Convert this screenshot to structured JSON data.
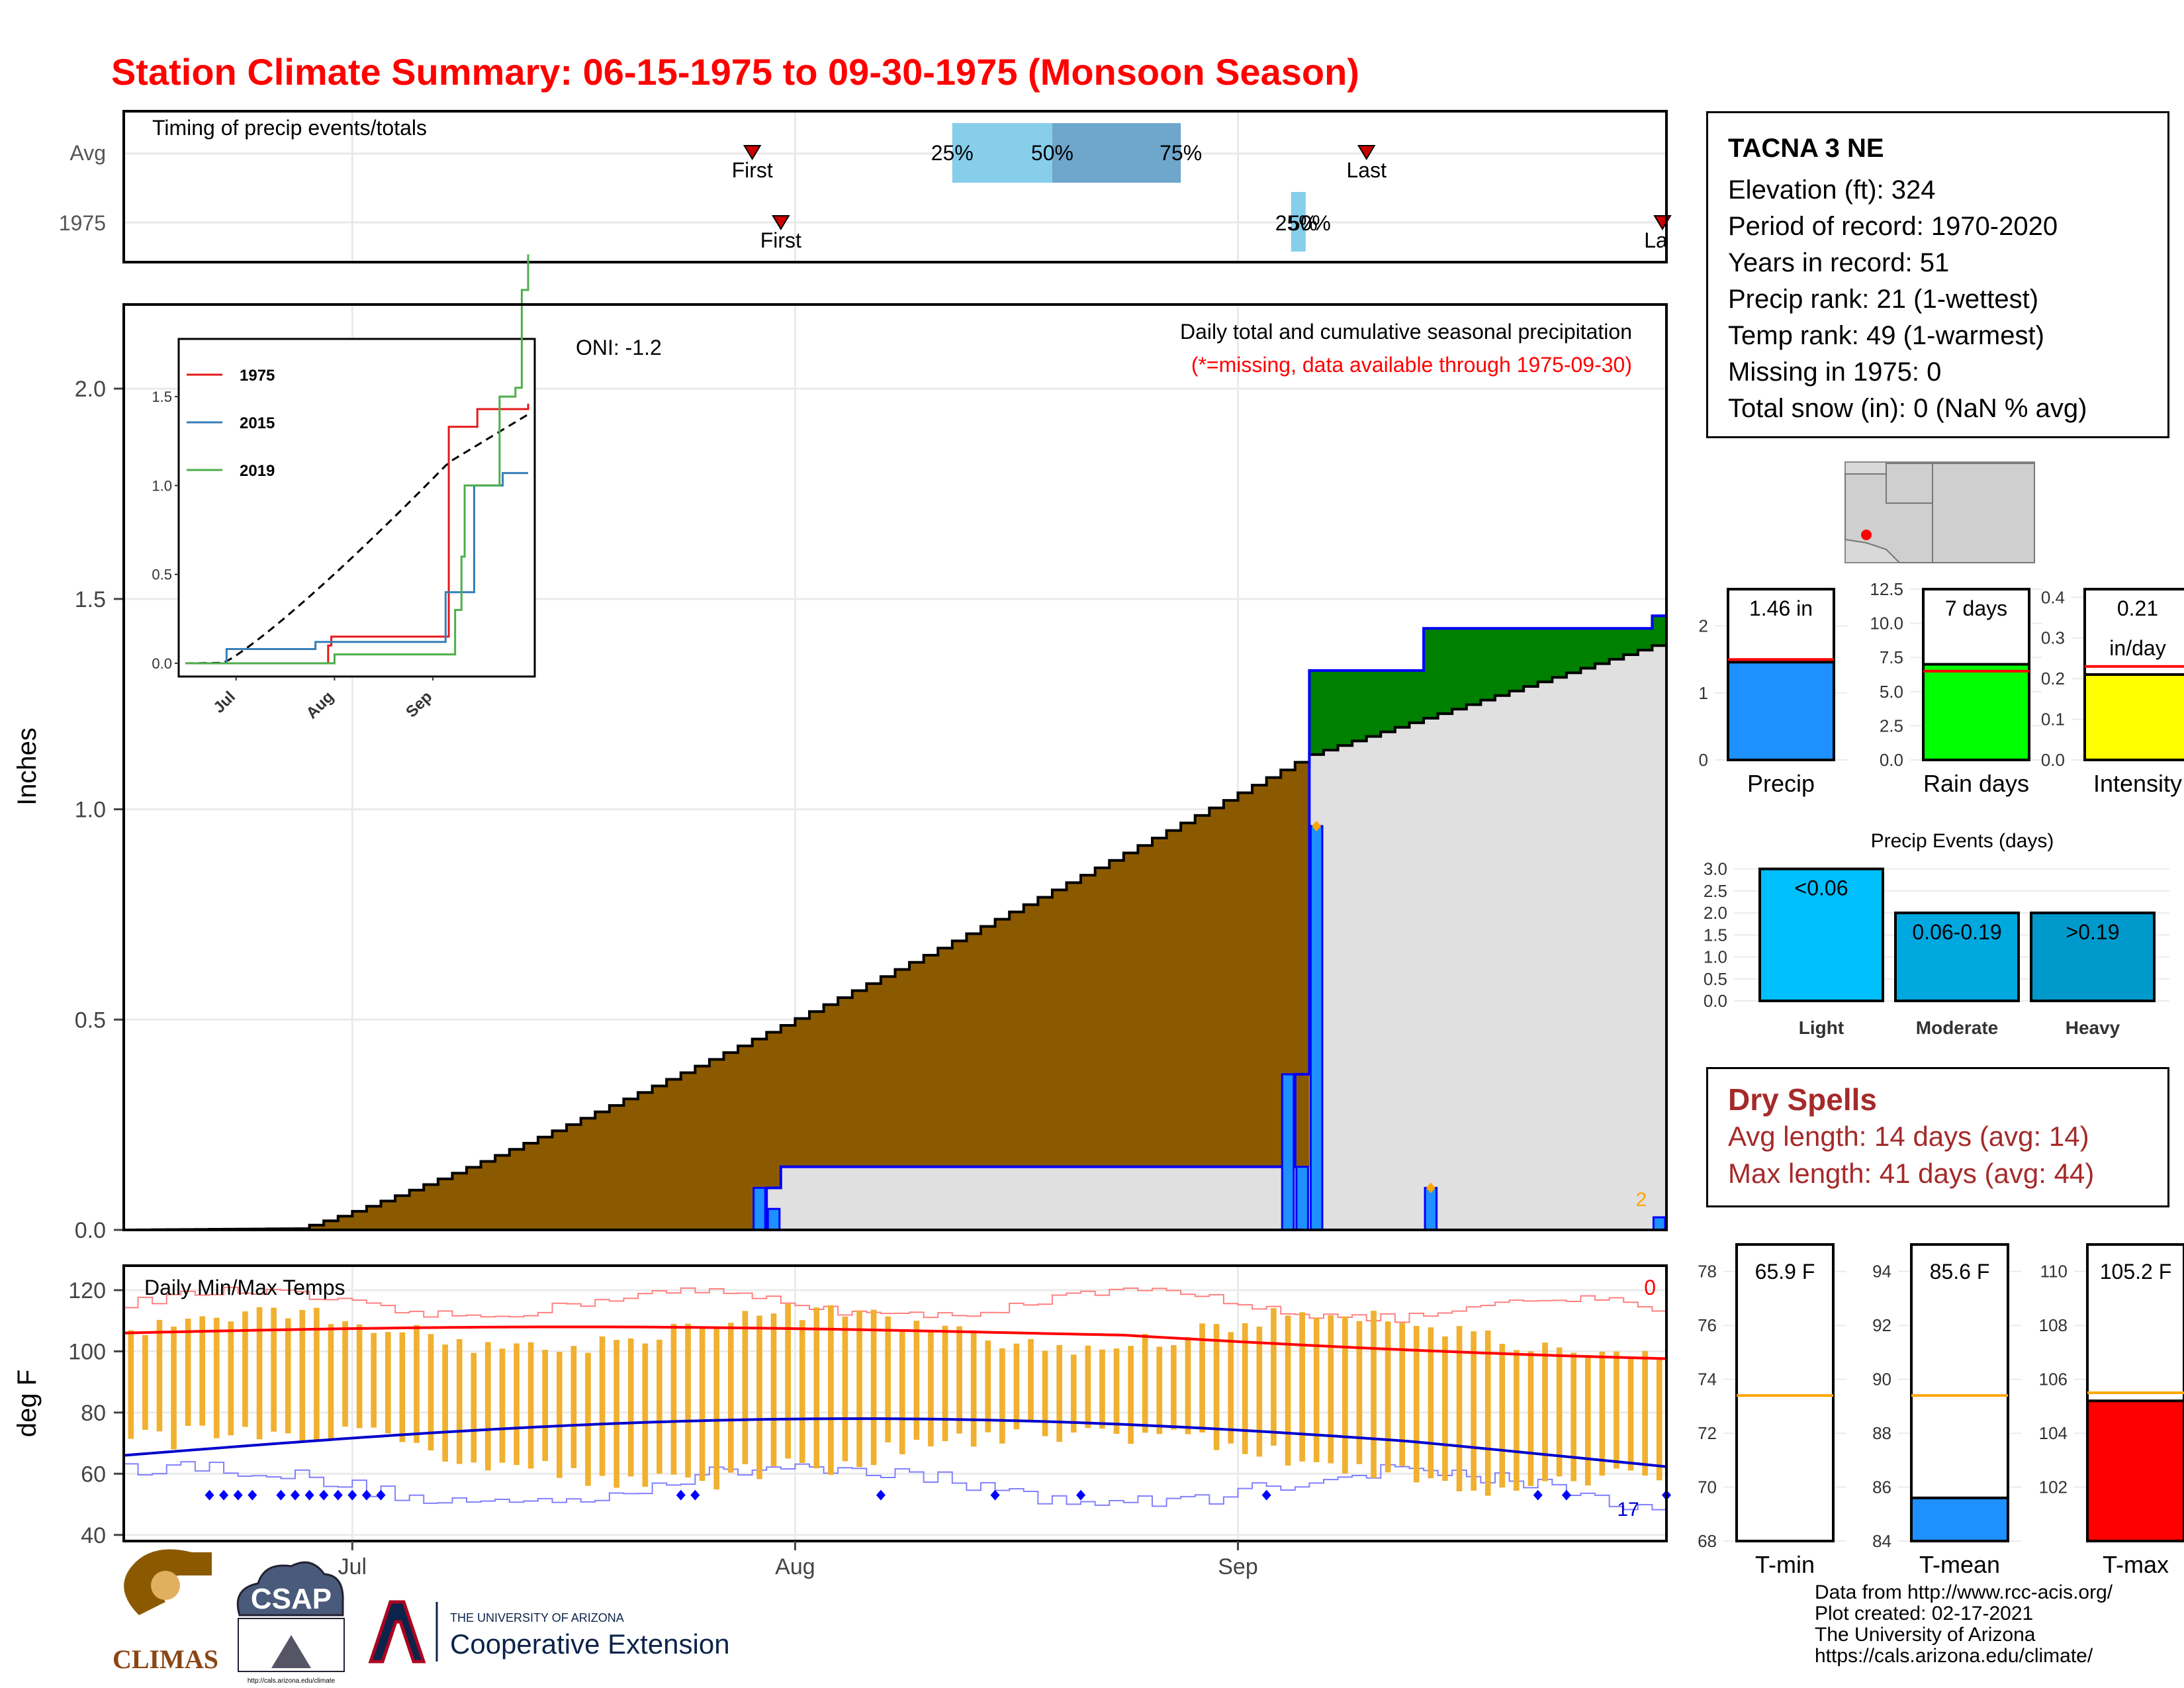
{
  "title": "Station Climate Summary: 06-15-1975 to 09-30-1975 (Monsoon Season)",
  "months": [
    "Jul",
    "Aug",
    "Sep"
  ],
  "timing_panel": {
    "label": "Timing of precip events/totals",
    "rows": [
      "Avg",
      "1975"
    ],
    "avg": {
      "first_label": "First",
      "last_label": "Last",
      "p25": "25%",
      "p50": "50%",
      "p75": "75%",
      "first_day": 44,
      "last_day": 87,
      "p25_day": 58,
      "p50_day": 65,
      "p75_day": 74
    },
    "y1975": {
      "first_label": "First",
      "last_label": "La",
      "pct_label": "25%",
      "pct_label2": "50%",
      "first_day": 46,
      "last_day": 108,
      "p25_day": 82,
      "p50_day": 83,
      "p75_day": 83
    }
  },
  "precip_panel": {
    "ylabel": "Inches",
    "yticks": [
      "0.0",
      "0.5",
      "1.0",
      "1.5",
      "2.0"
    ],
    "oni": "ONI: -1.2",
    "caption": "Daily total and cumulative seasonal precipitation",
    "missing_note": "(*=missing, data available through 1975-09-30)",
    "corner_count": "2",
    "colors": {
      "avg_fill": "#8b5a00",
      "season_fill": "#e0e0e0",
      "above_fill": "#008000",
      "daily_bar": "#1e90ff",
      "line": "#0000ff"
    }
  },
  "inset": {
    "legend": [
      "1975",
      "2015",
      "2019"
    ],
    "colors": [
      "#e41a1c",
      "#377eb8",
      "#4daf4a"
    ],
    "yticks": [
      "0.0",
      "0.5",
      "1.0",
      "1.5"
    ],
    "xticks": [
      "Jul",
      "Aug",
      "Sep"
    ]
  },
  "temp_panel": {
    "label": "Daily Min/Max Temps",
    "ylabel": "deg F",
    "yticks": [
      "40",
      "60",
      "80",
      "100",
      "120"
    ],
    "corner_top": "0",
    "corner_bottom": "17"
  },
  "station": {
    "name": "TACNA 3 NE",
    "lines": [
      "Elevation (ft): 324",
      "Period of record: 1970-2020",
      "Years in record: 51",
      "Precip rank: 21 (1-wettest)",
      "Temp rank: 49 (1-warmest)",
      "Missing in 1975: 0",
      "Total snow (in): 0 (NaN % avg)"
    ]
  },
  "summary_bars": [
    {
      "label": "Precip",
      "value_text": "1.46 in",
      "value": 1.46,
      "avg": 1.5,
      "ymax": 2.55,
      "yticks": [
        "0",
        "1",
        "2"
      ],
      "tickvals": [
        0,
        1,
        2
      ],
      "color": "#1e90ff"
    },
    {
      "label": "Rain days",
      "value_text": "7 days",
      "value": 7,
      "avg": 6.5,
      "ymax": 12.5,
      "yticks": [
        "0.0",
        "2.5",
        "5.0",
        "7.5",
        "10.0",
        "12.5"
      ],
      "tickvals": [
        0,
        2.5,
        5,
        7.5,
        10,
        12.5
      ],
      "color": "#00ff00"
    },
    {
      "label": "Intensity",
      "value_text": "0.21",
      "value_text2": "in/day",
      "value": 0.21,
      "avg": 0.23,
      "ymax": 0.42,
      "yticks": [
        "0.0",
        "0.1",
        "0.2",
        "0.3",
        "0.4"
      ],
      "tickvals": [
        0,
        0.1,
        0.2,
        0.3,
        0.4
      ],
      "color": "#ffff00"
    }
  ],
  "events": {
    "title": "Precip Events (days)",
    "yticks": [
      "0.0",
      "0.5",
      "1.0",
      "1.5",
      "2.0",
      "2.5",
      "3.0"
    ],
    "tickvals": [
      0,
      0.5,
      1,
      1.5,
      2,
      2.5,
      3
    ],
    "bars": [
      {
        "name": "Light",
        "label": "<0.06",
        "value": 3,
        "color": "#00bfff"
      },
      {
        "name": "Moderate",
        "label": "0.06-0.19",
        "value": 2,
        "color": "#00a8e0"
      },
      {
        "name": "Heavy",
        "label": ">0.19",
        "value": 2,
        "color": "#0099cc"
      }
    ]
  },
  "dry_spells": {
    "title": "Dry Spells",
    "avg_length": "Avg length: 14 days (avg: 14)",
    "max_length": "Max length: 41 days (avg: 44)"
  },
  "temp_bars": [
    {
      "label": "T-min",
      "value_text": "65.9 F",
      "value": 65.9,
      "avg": 73.4,
      "ymin": 68,
      "ymax": 79,
      "yticks": [
        "68",
        "70",
        "72",
        "74",
        "76",
        "78"
      ],
      "tickvals": [
        68,
        70,
        72,
        74,
        76,
        78
      ],
      "color": "#ffffff"
    },
    {
      "label": "T-mean",
      "value_text": "85.6 F",
      "value": 85.6,
      "avg": 89.4,
      "ymin": 84,
      "ymax": 95,
      "yticks": [
        "84",
        "86",
        "88",
        "90",
        "92",
        "94"
      ],
      "tickvals": [
        84,
        86,
        88,
        90,
        92,
        94
      ],
      "color": "#1e90ff"
    },
    {
      "label": "T-max",
      "value_text": "105.2 F",
      "value": 105.2,
      "avg": 105.5,
      "ymin": 100,
      "ymax": 111,
      "yticks": [
        "102",
        "104",
        "106",
        "108",
        "110"
      ],
      "tickvals": [
        102,
        104,
        106,
        108,
        110
      ],
      "color": "#ff0000"
    }
  ],
  "credits": [
    "Data from http://www.rcc-acis.org/",
    "Plot created: 02-17-2021",
    "The University of Arizona",
    "https://cals.arizona.edu/climate/"
  ],
  "logos": {
    "climas": "CLIMAS",
    "csap": "CSAP",
    "ua_small": "THE UNIVERSITY OF ARIZONA",
    "ua_big": "Cooperative Extension",
    "csap_url": "http://cals.arizona.edu/climate"
  }
}
